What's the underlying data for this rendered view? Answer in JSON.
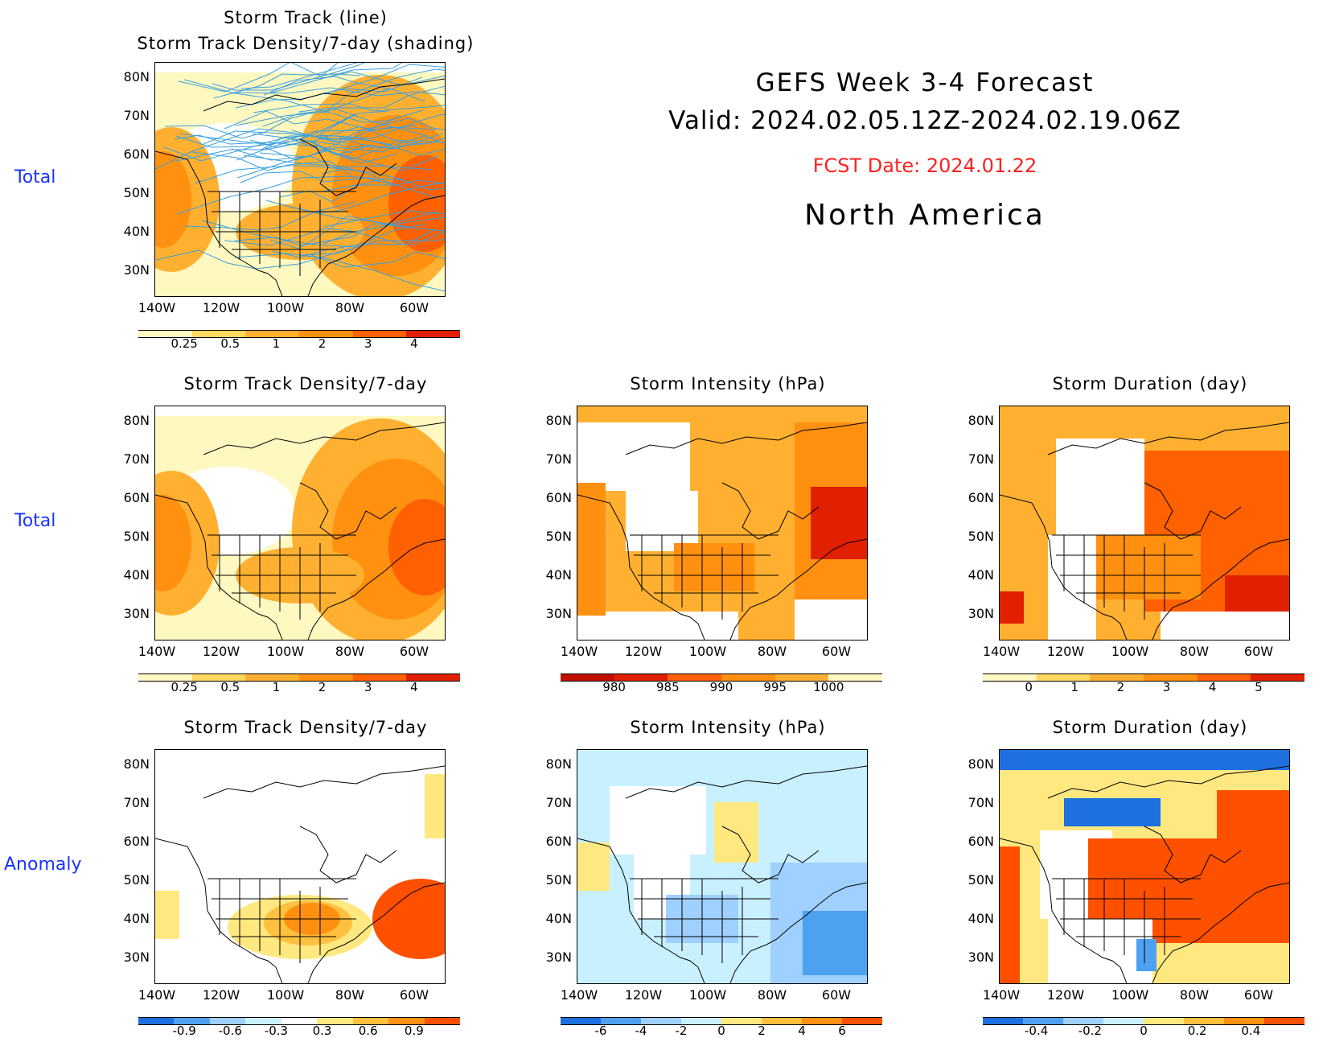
{
  "header": {
    "title": "GEFS Week 3-4 Forecast",
    "valid": "Valid: 2024.02.05.12Z-2024.02.19.06Z",
    "fcst_date": "FCST Date: 2024.01.22",
    "region": "North America"
  },
  "row_labels": {
    "top": "Total",
    "middle": "Total",
    "bottom": "Anomaly"
  },
  "axes": {
    "lat_labels": [
      "80N",
      "70N",
      "60N",
      "50N",
      "40N",
      "30N"
    ],
    "lon_labels": [
      "140W",
      "120W",
      "100W",
      "80W",
      "60W"
    ]
  },
  "colors": {
    "label_blue": "#1a33ff",
    "fcst_red": "#ff2020",
    "track_line": "#3aa0e0"
  },
  "panels": {
    "track": {
      "title_line1": "Storm Track (line)",
      "title_line2": "Storm Track Density/7-day (shading)",
      "colorbar": {
        "ticks": [
          "0.25",
          "0.5",
          "1",
          "2",
          "3",
          "4"
        ],
        "colors": [
          "#fff8c0",
          "#ffd860",
          "#ffb030",
          "#ff9010",
          "#ff6000",
          "#e02000"
        ]
      }
    },
    "density_total": {
      "title": "Storm Track Density/7-day",
      "colorbar": {
        "ticks": [
          "0.25",
          "0.5",
          "1",
          "2",
          "3",
          "4"
        ],
        "colors": [
          "#fff8c0",
          "#ffd860",
          "#ffb030",
          "#ff9010",
          "#ff6000",
          "#e02000"
        ]
      }
    },
    "intensity_total": {
      "title": "Storm Intensity (hPa)",
      "colorbar": {
        "ticks": [
          "980",
          "985",
          "990",
          "995",
          "1000"
        ],
        "colors": [
          "#c01000",
          "#e02000",
          "#ff6000",
          "#ff9010",
          "#ffb030",
          "#fff8c0"
        ]
      }
    },
    "duration_total": {
      "title": "Storm Duration (day)",
      "colorbar": {
        "ticks": [
          "0",
          "1",
          "2",
          "3",
          "4",
          "5"
        ],
        "colors": [
          "#fff8c0",
          "#ffd860",
          "#ffb030",
          "#ff9010",
          "#ff6000",
          "#e02000"
        ]
      }
    },
    "density_anom": {
      "title": "Storm Track Density/7-day",
      "colorbar": {
        "ticks": [
          "-0.9",
          "-0.6",
          "-0.3",
          "0.3",
          "0.6",
          "0.9"
        ],
        "colors": [
          "#1e6fe0",
          "#4ea0f0",
          "#9fd0ff",
          "#c8f0ff",
          "#ffffff",
          "#ffe880",
          "#ffc040",
          "#ff9010",
          "#ff5000"
        ]
      }
    },
    "intensity_anom": {
      "title": "Storm Intensity (hPa)",
      "colorbar": {
        "ticks": [
          "-6",
          "-4",
          "-2",
          "0",
          "2",
          "4",
          "6"
        ],
        "colors": [
          "#1e6fe0",
          "#4ea0f0",
          "#9fd0ff",
          "#c8f0ff",
          "#ffe880",
          "#ffc040",
          "#ff9010",
          "#ff5000"
        ]
      }
    },
    "duration_anom": {
      "title": "Storm Duration (day)",
      "colorbar": {
        "ticks": [
          "-0.4",
          "-0.2",
          "0",
          "0.2",
          "0.4"
        ],
        "colors": [
          "#1e6fe0",
          "#4ea0f0",
          "#9fd0ff",
          "#c8f0ff",
          "#ffe880",
          "#ffc040",
          "#ff9010",
          "#ff5000"
        ]
      }
    }
  }
}
